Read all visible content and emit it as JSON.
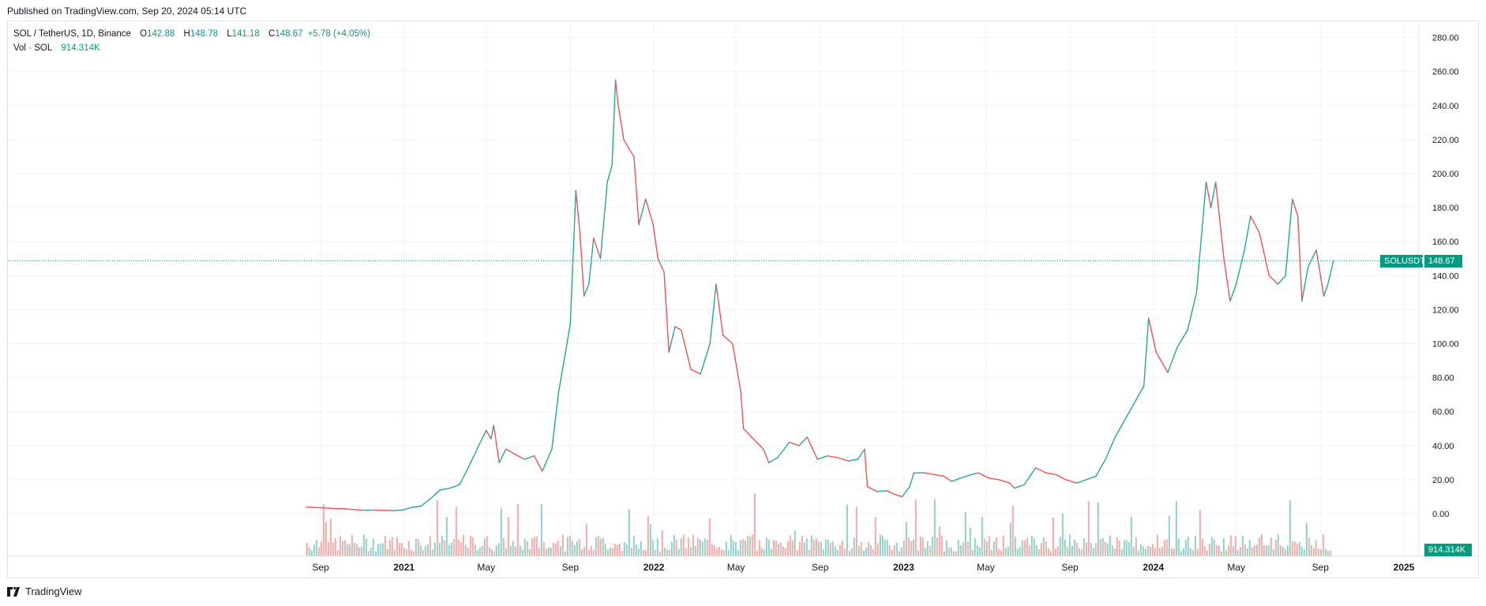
{
  "header": {
    "published": "Published on TradingView.com, Sep 20, 2024 05:14 UTC"
  },
  "legend": {
    "symbol": "SOL / TetherUS, 1D, Binance",
    "o_label": "O",
    "o_value": "142.88",
    "h_label": "H",
    "h_value": "148.78",
    "l_label": "L",
    "l_value": "141.18",
    "c_label": "C",
    "c_value": "148.67",
    "change": "+5.78 (+4.05%)",
    "vol_label": "Vol · SOL",
    "vol_value": "914.314K"
  },
  "tags": {
    "symbol_tag": "SOLUSDT",
    "price_tag": "148.67",
    "vol_tag": "914.314K"
  },
  "footer": {
    "brand": "TradingView"
  },
  "colors": {
    "up": "#26a69a",
    "down": "#ef5350",
    "vol_up": "#8fd1c7",
    "vol_down": "#f7a9a7",
    "price_tag_bg": "#089981",
    "grid": "#f0f3fa",
    "axis_text": "#131722"
  },
  "chart_data": {
    "type": "line",
    "title": "SOL / TetherUS, 1D, Binance",
    "xlabel": "",
    "ylabel": "",
    "ylim": [
      -20,
      285
    ],
    "y_ticks": [
      "280.00",
      "260.00",
      "240.00",
      "220.00",
      "200.00",
      "180.00",
      "160.00",
      "140.00",
      "120.00",
      "100.00",
      "80.00",
      "60.00",
      "40.00",
      "20.00",
      "0.00"
    ],
    "x_ticks": [
      {
        "label": "Sep",
        "date": "2020-09"
      },
      {
        "label": "2021",
        "date": "2021-01"
      },
      {
        "label": "May",
        "date": "2021-05"
      },
      {
        "label": "Sep",
        "date": "2021-09"
      },
      {
        "label": "2022",
        "date": "2022-01"
      },
      {
        "label": "May",
        "date": "2022-05"
      },
      {
        "label": "Sep",
        "date": "2022-09"
      },
      {
        "label": "2023",
        "date": "2023-01"
      },
      {
        "label": "May",
        "date": "2023-05"
      },
      {
        "label": "Sep",
        "date": "2023-09"
      },
      {
        "label": "2024",
        "date": "2024-01"
      },
      {
        "label": "May",
        "date": "2024-05"
      },
      {
        "label": "Sep",
        "date": "2024-09"
      },
      {
        "label": "2025",
        "date": "2025-01"
      }
    ],
    "last_price": 148.67,
    "series": [
      {
        "name": "SOLUSDT",
        "points": [
          [
            "2020-08-11",
            3.9
          ],
          [
            "2020-08-25",
            3.6
          ],
          [
            "2020-09-08",
            3.4
          ],
          [
            "2020-09-22",
            3.0
          ],
          [
            "2020-10-06",
            2.9
          ],
          [
            "2020-10-20",
            2.4
          ],
          [
            "2020-11-03",
            2.0
          ],
          [
            "2020-11-17",
            2.1
          ],
          [
            "2020-12-01",
            2.0
          ],
          [
            "2020-12-15",
            1.8
          ],
          [
            "2020-12-29",
            2.1
          ],
          [
            "2021-01-12",
            3.6
          ],
          [
            "2021-01-26",
            4.5
          ],
          [
            "2021-02-09",
            9.0
          ],
          [
            "2021-02-23",
            14.0
          ],
          [
            "2021-03-09",
            15.0
          ],
          [
            "2021-03-23",
            17.0
          ],
          [
            "2021-04-06",
            28.0
          ],
          [
            "2021-04-20",
            40.0
          ],
          [
            "2021-05-01",
            49.0
          ],
          [
            "2021-05-08",
            44.0
          ],
          [
            "2021-05-12",
            52.0
          ],
          [
            "2021-05-20",
            30.0
          ],
          [
            "2021-05-30",
            38.0
          ],
          [
            "2021-06-12",
            35.0
          ],
          [
            "2021-06-26",
            32.0
          ],
          [
            "2021-07-10",
            34.0
          ],
          [
            "2021-07-22",
            25.0
          ],
          [
            "2021-08-05",
            38.0
          ],
          [
            "2021-08-15",
            72.0
          ],
          [
            "2021-08-25",
            95.0
          ],
          [
            "2021-09-01",
            112.0
          ],
          [
            "2021-09-09",
            190.0
          ],
          [
            "2021-09-15",
            165.0
          ],
          [
            "2021-09-21",
            128.0
          ],
          [
            "2021-09-28",
            135.0
          ],
          [
            "2021-10-05",
            162.0
          ],
          [
            "2021-10-15",
            150.0
          ],
          [
            "2021-10-25",
            195.0
          ],
          [
            "2021-11-01",
            205.0
          ],
          [
            "2021-11-06",
            255.0
          ],
          [
            "2021-11-10",
            240.0
          ],
          [
            "2021-11-18",
            220.0
          ],
          [
            "2021-11-25",
            215.0
          ],
          [
            "2021-12-03",
            210.0
          ],
          [
            "2021-12-10",
            170.0
          ],
          [
            "2021-12-20",
            185.0
          ],
          [
            "2021-12-31",
            170.0
          ],
          [
            "2022-01-07",
            150.0
          ],
          [
            "2022-01-16",
            142.0
          ],
          [
            "2022-01-23",
            95.0
          ],
          [
            "2022-02-01",
            110.0
          ],
          [
            "2022-02-10",
            108.0
          ],
          [
            "2022-02-24",
            85.0
          ],
          [
            "2022-03-10",
            82.0
          ],
          [
            "2022-03-24",
            100.0
          ],
          [
            "2022-04-02",
            135.0
          ],
          [
            "2022-04-12",
            105.0
          ],
          [
            "2022-04-26",
            100.0
          ],
          [
            "2022-05-08",
            72.0
          ],
          [
            "2022-05-12",
            50.0
          ],
          [
            "2022-05-24",
            45.0
          ],
          [
            "2022-06-10",
            38.0
          ],
          [
            "2022-06-18",
            30.0
          ],
          [
            "2022-07-01",
            33.0
          ],
          [
            "2022-07-18",
            42.0
          ],
          [
            "2022-08-01",
            40.0
          ],
          [
            "2022-08-13",
            45.0
          ],
          [
            "2022-08-28",
            32.0
          ],
          [
            "2022-09-12",
            34.0
          ],
          [
            "2022-09-26",
            33.0
          ],
          [
            "2022-10-12",
            31.0
          ],
          [
            "2022-10-26",
            32.0
          ],
          [
            "2022-11-05",
            38.0
          ],
          [
            "2022-11-09",
            16.0
          ],
          [
            "2022-11-23",
            13.0
          ],
          [
            "2022-12-07",
            13.5
          ],
          [
            "2022-12-21",
            11.0
          ],
          [
            "2022-12-30",
            10.0
          ],
          [
            "2023-01-10",
            16.0
          ],
          [
            "2023-01-16",
            24.0
          ],
          [
            "2023-02-01",
            24.0
          ],
          [
            "2023-02-15",
            23.0
          ],
          [
            "2023-03-01",
            22.0
          ],
          [
            "2023-03-12",
            19.0
          ],
          [
            "2023-03-26",
            21.0
          ],
          [
            "2023-04-10",
            23.0
          ],
          [
            "2023-04-20",
            24.0
          ],
          [
            "2023-05-05",
            21.0
          ],
          [
            "2023-05-20",
            20.0
          ],
          [
            "2023-06-05",
            18.0
          ],
          [
            "2023-06-12",
            15.0
          ],
          [
            "2023-06-26",
            17.0
          ],
          [
            "2023-07-13",
            27.0
          ],
          [
            "2023-07-28",
            24.0
          ],
          [
            "2023-08-12",
            23.0
          ],
          [
            "2023-08-26",
            20.0
          ],
          [
            "2023-09-11",
            18.0
          ],
          [
            "2023-09-25",
            20.0
          ],
          [
            "2023-10-09",
            22.0
          ],
          [
            "2023-10-23",
            32.0
          ],
          [
            "2023-11-06",
            45.0
          ],
          [
            "2023-11-20",
            55.0
          ],
          [
            "2023-12-04",
            65.0
          ],
          [
            "2023-12-18",
            75.0
          ],
          [
            "2023-12-25",
            115.0
          ],
          [
            "2024-01-05",
            95.0
          ],
          [
            "2024-01-22",
            83.0
          ],
          [
            "2024-02-05",
            98.0
          ],
          [
            "2024-02-20",
            108.0
          ],
          [
            "2024-03-04",
            130.0
          ],
          [
            "2024-03-18",
            195.0
          ],
          [
            "2024-03-25",
            180.0
          ],
          [
            "2024-04-01",
            195.0
          ],
          [
            "2024-04-13",
            150.0
          ],
          [
            "2024-04-22",
            125.0
          ],
          [
            "2024-05-01",
            135.0
          ],
          [
            "2024-05-13",
            155.0
          ],
          [
            "2024-05-22",
            175.0
          ],
          [
            "2024-06-04",
            165.0
          ],
          [
            "2024-06-18",
            140.0
          ],
          [
            "2024-07-01",
            135.0
          ],
          [
            "2024-07-12",
            140.0
          ],
          [
            "2024-07-22",
            185.0
          ],
          [
            "2024-07-30",
            175.0
          ],
          [
            "2024-08-05",
            125.0
          ],
          [
            "2024-08-14",
            145.0
          ],
          [
            "2024-08-26",
            155.0
          ],
          [
            "2024-09-06",
            128.0
          ],
          [
            "2024-09-12",
            135.0
          ],
          [
            "2024-09-20",
            148.67
          ]
        ]
      }
    ],
    "volume": {
      "name": "Vol · SOL",
      "last_value": "914.314K"
    },
    "grid": true,
    "legend_position": "top-left"
  }
}
